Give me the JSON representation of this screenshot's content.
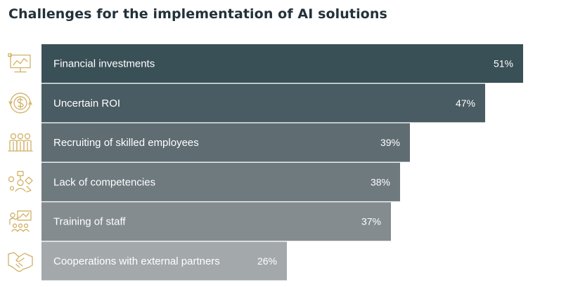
{
  "title": "Challenges for the implementation of AI solutions",
  "colors": {
    "title": "#23313a",
    "icon": "#d1b066",
    "bar_text": "#ffffff",
    "bars": [
      "#3a5057",
      "#4a5c63",
      "#5f6d73",
      "#6f7a7f",
      "#848c90",
      "#a3a8ab"
    ]
  },
  "chart_data": {
    "type": "bar",
    "orientation": "horizontal",
    "categories": [
      "Financial investments",
      "Uncertain ROI",
      "Recruiting of skilled employees",
      "Lack of competencies",
      "Training of staff",
      "Cooperations with external partners"
    ],
    "values": [
      51,
      47,
      39,
      38,
      37,
      26
    ],
    "value_labels": [
      "51%",
      "47%",
      "39%",
      "38%",
      "37%",
      "26%"
    ],
    "icons": [
      "presentation-monitor-icon",
      "dollar-coin-cycle-icon",
      "team-people-icon",
      "competency-network-icon",
      "trainer-board-icon",
      "handshake-icon"
    ],
    "title": "Challenges for the implementation of AI solutions",
    "xlabel": "",
    "ylabel": "",
    "unit": "%",
    "xlim": [
      0,
      55
    ],
    "grid": false,
    "legend": "none"
  }
}
